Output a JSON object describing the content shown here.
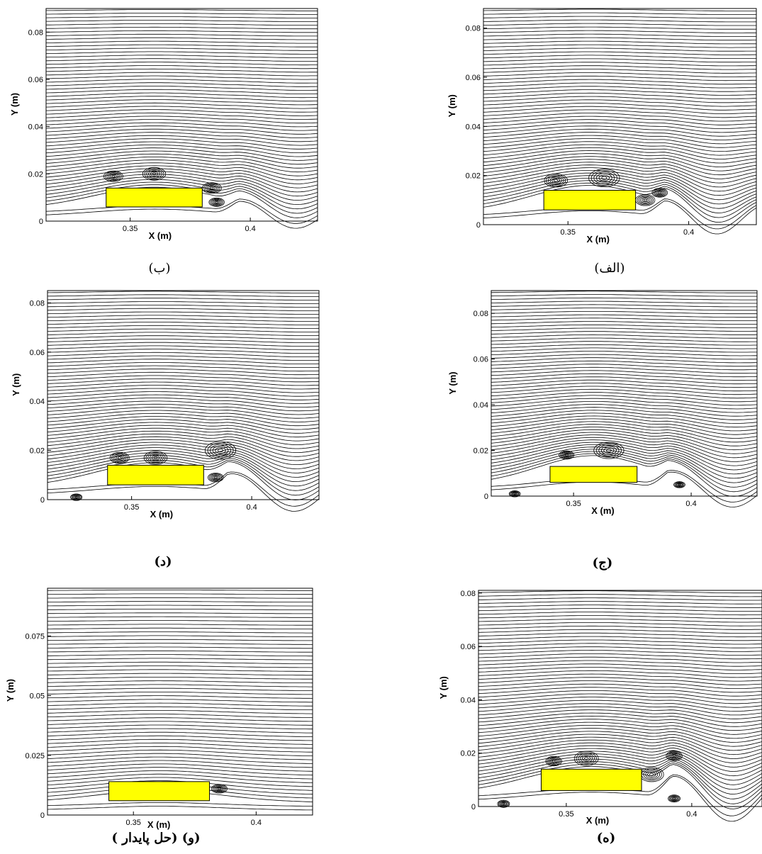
{
  "chart_data": [
    {
      "type": "streamline",
      "id": "b",
      "caption": "(ب)",
      "xlabel": "X (m)",
      "ylabel": "Y (m)",
      "xlim": [
        0.315,
        0.428
      ],
      "ylim": [
        0,
        0.09
      ],
      "xticks": [
        {
          "v": 0.35,
          "label": "0.35"
        },
        {
          "v": 0.4,
          "label": "0.4"
        }
      ],
      "yticks": [
        {
          "v": 0,
          "label": "0"
        },
        {
          "v": 0.02,
          "label": "0.02"
        },
        {
          "v": 0.04,
          "label": "0.04"
        },
        {
          "v": 0.06,
          "label": "0.06"
        },
        {
          "v": 0.08,
          "label": "0.08"
        }
      ],
      "obstacle": {
        "x": [
          0.34,
          0.38
        ],
        "y": [
          0.006,
          0.014
        ],
        "color": "#ffff00"
      },
      "bump_height": 0.011,
      "vortices": [
        {
          "x": 0.343,
          "y": 0.019,
          "r": 0.0025
        },
        {
          "x": 0.36,
          "y": 0.02,
          "r": 0.003
        },
        {
          "x": 0.384,
          "y": 0.014,
          "r": 0.0025
        },
        {
          "x": 0.386,
          "y": 0.008,
          "r": 0.002
        }
      ],
      "wake": {
        "start": 0.385,
        "amp": 0.006,
        "period": 0.045
      }
    },
    {
      "type": "streamline",
      "id": "alef",
      "caption": "(الف)",
      "xlabel": "X (m)",
      "ylabel": "Y (m)",
      "xlim": [
        0.315,
        0.428
      ],
      "ylim": [
        0,
        0.088
      ],
      "xticks": [
        {
          "v": 0.35,
          "label": "0.35"
        },
        {
          "v": 0.4,
          "label": "0.4"
        }
      ],
      "yticks": [
        {
          "v": 0,
          "label": "0"
        },
        {
          "v": 0.02,
          "label": "0.02"
        },
        {
          "v": 0.04,
          "label": "0.04"
        },
        {
          "v": 0.06,
          "label": "0.06"
        },
        {
          "v": 0.08,
          "label": "0.08"
        }
      ],
      "obstacle": {
        "x": [
          0.34,
          0.378
        ],
        "y": [
          0.006,
          0.014
        ],
        "color": "#ffff00"
      },
      "bump_height": 0.013,
      "vortices": [
        {
          "x": 0.345,
          "y": 0.018,
          "r": 0.003
        },
        {
          "x": 0.365,
          "y": 0.019,
          "r": 0.004
        },
        {
          "x": 0.382,
          "y": 0.01,
          "r": 0.0025
        },
        {
          "x": 0.388,
          "y": 0.013,
          "r": 0.002
        }
      ],
      "wake": {
        "start": 0.38,
        "amp": 0.007,
        "period": 0.042
      }
    },
    {
      "type": "streamline",
      "id": "dal",
      "caption": "(د)",
      "xlabel": "X (m)",
      "ylabel": "Y (m)",
      "xlim": [
        0.315,
        0.428
      ],
      "ylim": [
        0,
        0.085
      ],
      "xticks": [
        {
          "v": 0.35,
          "label": "0.35"
        },
        {
          "v": 0.4,
          "label": "0.4"
        }
      ],
      "yticks": [
        {
          "v": 0,
          "label": "0"
        },
        {
          "v": 0.02,
          "label": "0.02"
        },
        {
          "v": 0.04,
          "label": "0.04"
        },
        {
          "v": 0.06,
          "label": "0.06"
        },
        {
          "v": 0.08,
          "label": "0.08"
        }
      ],
      "obstacle": {
        "x": [
          0.34,
          0.38
        ],
        "y": [
          0.006,
          0.014
        ],
        "color": "#ffff00"
      },
      "bump_height": 0.012,
      "vortices": [
        {
          "x": 0.345,
          "y": 0.017,
          "r": 0.0025
        },
        {
          "x": 0.36,
          "y": 0.017,
          "r": 0.003
        },
        {
          "x": 0.387,
          "y": 0.02,
          "r": 0.004
        },
        {
          "x": 0.385,
          "y": 0.009,
          "r": 0.002
        },
        {
          "x": 0.327,
          "y": 0.001,
          "r": 0.0015
        }
      ],
      "wake": {
        "start": 0.38,
        "amp": 0.008,
        "period": 0.05
      }
    },
    {
      "type": "streamline",
      "id": "jim",
      "caption": "(ج)",
      "xlabel": "X (m)",
      "ylabel": "Y (m)",
      "xlim": [
        0.315,
        0.428
      ],
      "ylim": [
        0,
        0.09
      ],
      "xticks": [
        {
          "v": 0.35,
          "label": "0.35"
        },
        {
          "v": 0.4,
          "label": "0.4"
        }
      ],
      "yticks": [
        {
          "v": 0,
          "label": "0"
        },
        {
          "v": 0.02,
          "label": "0.02"
        },
        {
          "v": 0.04,
          "label": "0.04"
        },
        {
          "v": 0.06,
          "label": "0.06"
        },
        {
          "v": 0.08,
          "label": "0.08"
        }
      ],
      "obstacle": {
        "x": [
          0.34,
          0.377
        ],
        "y": [
          0.006,
          0.013
        ],
        "color": "#ffff00"
      },
      "bump_height": 0.015,
      "vortices": [
        {
          "x": 0.347,
          "y": 0.018,
          "r": 0.002
        },
        {
          "x": 0.365,
          "y": 0.02,
          "r": 0.004
        },
        {
          "x": 0.395,
          "y": 0.005,
          "r": 0.0015
        },
        {
          "x": 0.325,
          "y": 0.001,
          "r": 0.0015
        }
      ],
      "wake": {
        "start": 0.38,
        "amp": 0.008,
        "period": 0.05
      }
    },
    {
      "type": "streamline",
      "id": "vav",
      "caption": "(و) (حل پايدار )",
      "xlabel": "X (m)",
      "ylabel": "Y (m)",
      "xlim": [
        0.315,
        0.423
      ],
      "ylim": [
        0,
        0.095
      ],
      "xticks": [
        {
          "v": 0.35,
          "label": "0.35"
        },
        {
          "v": 0.4,
          "label": "0.4"
        }
      ],
      "yticks": [
        {
          "v": 0,
          "label": "0"
        },
        {
          "v": 0.025,
          "label": "0.025"
        },
        {
          "v": 0.05,
          "label": "0.05"
        },
        {
          "v": 0.075,
          "label": "0.075"
        }
      ],
      "obstacle": {
        "x": [
          0.34,
          0.381
        ],
        "y": [
          0.006,
          0.014
        ],
        "color": "#ffff00"
      },
      "bump_height": 0.006,
      "vortices": [
        {
          "x": 0.385,
          "y": 0.011,
          "r": 0.002
        }
      ],
      "wake": {
        "start": 0.39,
        "amp": 0.0,
        "period": 0.05
      }
    },
    {
      "type": "streamline",
      "id": "he",
      "caption": "(ه)",
      "xlabel": "X (m)",
      "ylabel": "Y (m)",
      "xlim": [
        0.315,
        0.428
      ],
      "ylim": [
        0,
        0.081
      ],
      "xticks": [
        {
          "v": 0.35,
          "label": "0.35"
        },
        {
          "v": 0.4,
          "label": "0.4"
        }
      ],
      "yticks": [
        {
          "v": 0,
          "label": "0"
        },
        {
          "v": 0.02,
          "label": "0.02"
        },
        {
          "v": 0.04,
          "label": "0.04"
        },
        {
          "v": 0.06,
          "label": "0.06"
        },
        {
          "v": 0.08,
          "label": "0.08"
        }
      ],
      "obstacle": {
        "x": [
          0.34,
          0.38
        ],
        "y": [
          0.006,
          0.014
        ],
        "color": "#ffff00"
      },
      "bump_height": 0.012,
      "vortices": [
        {
          "x": 0.345,
          "y": 0.017,
          "r": 0.002
        },
        {
          "x": 0.358,
          "y": 0.018,
          "r": 0.003
        },
        {
          "x": 0.384,
          "y": 0.012,
          "r": 0.003
        },
        {
          "x": 0.393,
          "y": 0.019,
          "r": 0.002
        },
        {
          "x": 0.393,
          "y": 0.003,
          "r": 0.0015
        },
        {
          "x": 0.325,
          "y": 0.001,
          "r": 0.0015
        }
      ],
      "wake": {
        "start": 0.382,
        "amp": 0.009,
        "period": 0.045
      }
    }
  ]
}
